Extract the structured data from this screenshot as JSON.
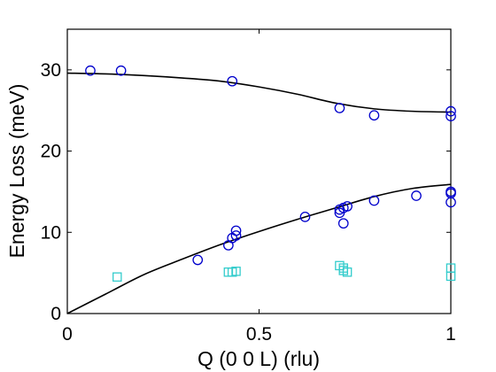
{
  "chart_data": {
    "type": "scatter",
    "title": "",
    "xlabel": "Q (0 0 L) (rlu)",
    "ylabel": "Energy Loss (meV)",
    "xlim": [
      0,
      1
    ],
    "ylim": [
      0,
      35
    ],
    "xticks": [
      0,
      0.5,
      1
    ],
    "xtick_labels": [
      "0",
      "0.5",
      "1"
    ],
    "yticks": [
      0,
      10,
      20,
      30
    ],
    "ytick_labels": [
      "0",
      "10",
      "20",
      "30"
    ],
    "grid": false,
    "legend": "none",
    "series": [
      {
        "marker": "circle",
        "color": "#0000cc",
        "points": [
          [
            0.06,
            29.9
          ],
          [
            0.14,
            29.9
          ],
          [
            0.43,
            28.6
          ],
          [
            0.71,
            25.3
          ],
          [
            0.8,
            24.4
          ],
          [
            1.0,
            24.9
          ],
          [
            1.0,
            24.3
          ],
          [
            0.34,
            6.6
          ],
          [
            0.42,
            8.4
          ],
          [
            0.43,
            9.3
          ],
          [
            0.44,
            9.6
          ],
          [
            0.44,
            10.2
          ],
          [
            0.62,
            11.9
          ],
          [
            0.71,
            12.4
          ],
          [
            0.71,
            12.8
          ],
          [
            0.72,
            13.0
          ],
          [
            0.72,
            11.1
          ],
          [
            0.73,
            13.2
          ],
          [
            0.8,
            13.9
          ],
          [
            0.91,
            14.5
          ],
          [
            1.0,
            14.8
          ],
          [
            1.0,
            15.0
          ],
          [
            1.0,
            13.7
          ]
        ]
      },
      {
        "marker": "square",
        "color": "#33cccc",
        "points": [
          [
            0.13,
            4.5
          ],
          [
            0.42,
            5.1
          ],
          [
            0.43,
            5.1
          ],
          [
            0.44,
            5.2
          ],
          [
            0.71,
            5.9
          ],
          [
            0.72,
            5.6
          ],
          [
            0.72,
            5.3
          ],
          [
            0.73,
            5.1
          ],
          [
            1.0,
            5.6
          ],
          [
            1.0,
            4.6
          ]
        ]
      }
    ],
    "lines": [
      {
        "color": "#000000",
        "x": [
          0,
          0.1,
          0.2,
          0.3,
          0.4,
          0.5,
          0.6,
          0.7,
          0.8,
          0.9,
          1.0
        ],
        "y": [
          29.6,
          29.5,
          29.3,
          29.0,
          28.6,
          27.9,
          27.0,
          25.9,
          25.2,
          24.9,
          24.8
        ]
      },
      {
        "color": "#000000",
        "x": [
          0,
          0.1,
          0.2,
          0.3,
          0.4,
          0.5,
          0.6,
          0.7,
          0.8,
          0.9,
          1.0
        ],
        "y": [
          0.0,
          2.4,
          4.8,
          6.7,
          8.5,
          10.1,
          11.6,
          13.0,
          14.4,
          15.4,
          15.9
        ]
      }
    ]
  }
}
